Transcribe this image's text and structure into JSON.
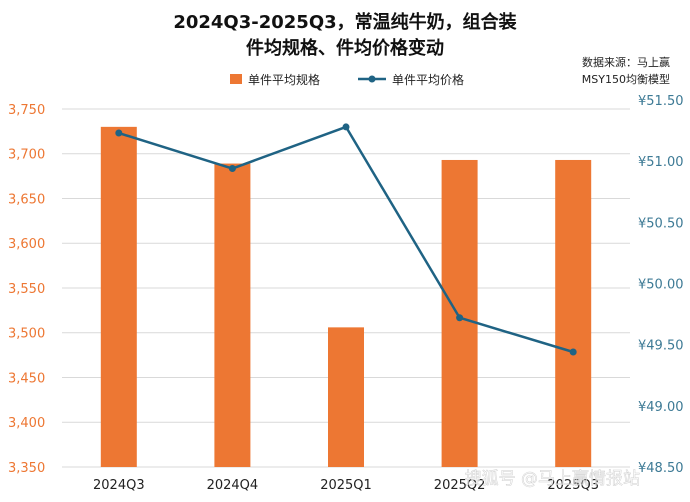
{
  "chart_data": {
    "type": "bar+line",
    "title_line1": "2024Q3-2025Q3，常温纯牛奶，组合装",
    "title_line2": "件均规格、件均价格变动",
    "source_note": "数据来源：马上赢",
    "model_note": "MSY150均衡模型",
    "watermark": "搜狐号 @马上赢情报站",
    "categories": [
      "2024Q3",
      "2024Q4",
      "2025Q1",
      "2025Q2",
      "2025Q3"
    ],
    "series": [
      {
        "name": "单件平均规格",
        "kind": "bar",
        "axis": "left",
        "color": "#ED7733",
        "values": [
          3730,
          3689,
          3506,
          3693,
          3693
        ]
      },
      {
        "name": "单件平均价格",
        "kind": "line",
        "axis": "right",
        "color": "#1F6384",
        "values": [
          51.23,
          50.94,
          51.28,
          49.72,
          49.44
        ]
      }
    ],
    "y_left": {
      "min": 3350,
      "max": 3760,
      "ticks": [
        3350,
        3400,
        3450,
        3500,
        3550,
        3600,
        3650,
        3700,
        3750
      ],
      "tick_labels": [
        "3,350",
        "3,400",
        "3,450",
        "3,500",
        "3,550",
        "3,600",
        "3,650",
        "3,700",
        "3,750"
      ],
      "color": "#ED7733"
    },
    "y_right": {
      "min": 48.5,
      "max": 51.5,
      "ticks": [
        48.5,
        49.0,
        49.5,
        50.0,
        50.5,
        51.0,
        51.5
      ],
      "tick_labels": [
        "¥48.50",
        "¥49.00",
        "¥49.50",
        "¥50.00",
        "¥50.50",
        "¥51.00",
        "¥51.50"
      ],
      "color": "#3D7A95"
    },
    "grid": "horizontal",
    "legend_position": "top-center"
  }
}
